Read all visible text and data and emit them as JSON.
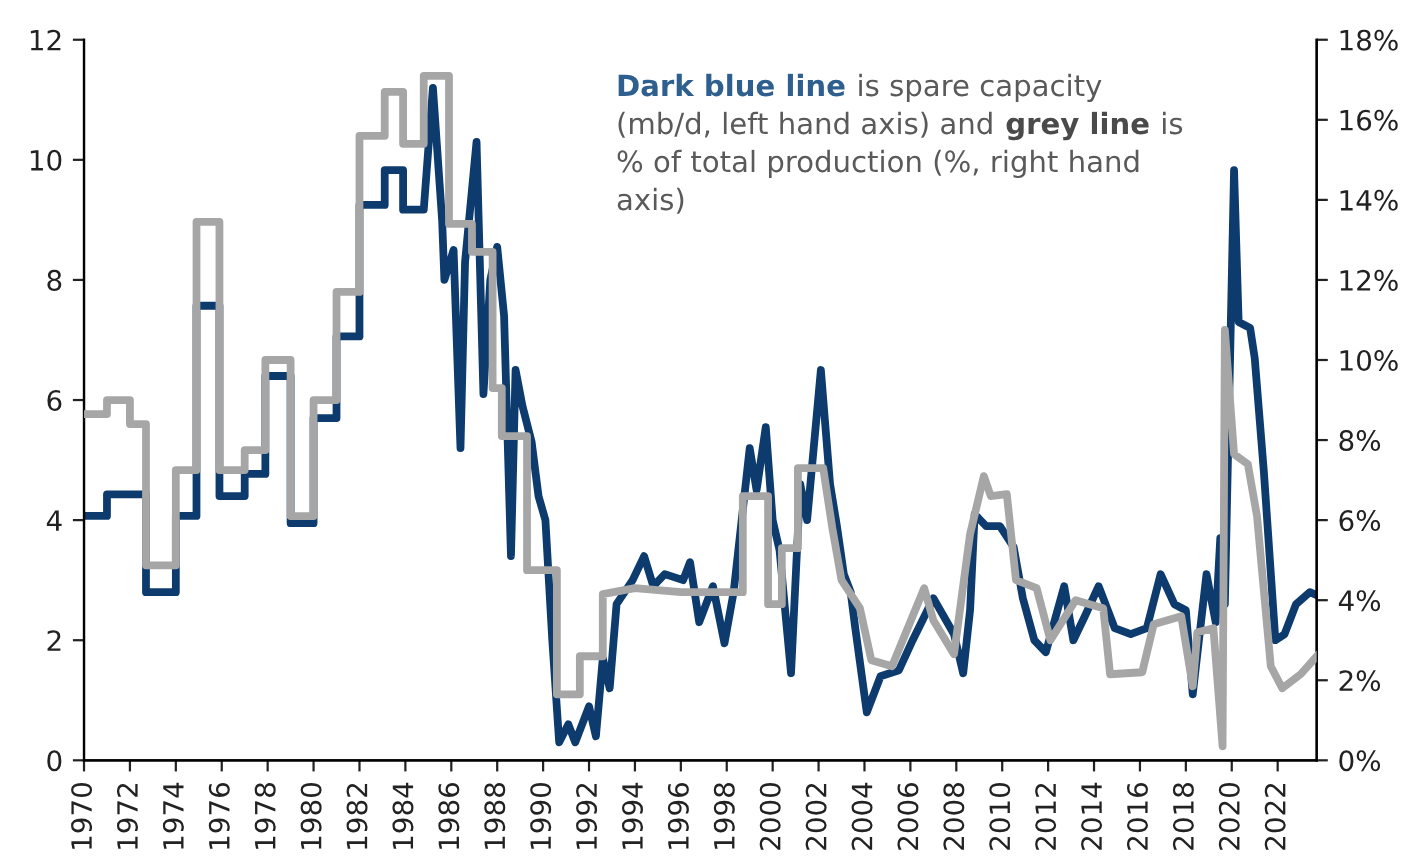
{
  "chart_data": {
    "type": "line",
    "xlim": [
      1970,
      2023.7
    ],
    "xticks": [
      1970,
      1972,
      1974,
      1976,
      1978,
      1980,
      1982,
      1984,
      1986,
      1988,
      1990,
      1992,
      1994,
      1996,
      1998,
      2000,
      2002,
      2004,
      2006,
      2008,
      2010,
      2012,
      2014,
      2016,
      2018,
      2020,
      2022
    ],
    "ylim": [
      0,
      12
    ],
    "yticks": [
      0,
      2,
      4,
      6,
      8,
      10,
      12
    ],
    "y2lim": [
      0,
      18
    ],
    "y2ticks": [
      {
        "value": 0,
        "label": "0%"
      },
      {
        "value": 2,
        "label": "2%"
      },
      {
        "value": 4,
        "label": "4%"
      },
      {
        "value": 6,
        "label": "6%"
      },
      {
        "value": 8,
        "label": "8%"
      },
      {
        "value": 10,
        "label": "10%"
      },
      {
        "value": 12,
        "label": "12%"
      },
      {
        "value": 14,
        "label": "14%"
      },
      {
        "value": 16,
        "label": "16%"
      },
      {
        "value": 18,
        "label": "18%"
      }
    ],
    "grid": false,
    "line_style": "solid",
    "annotations": [
      "Dark blue line",
      " is spare capacity (mb/d, left hand axis) and ",
      "grey line",
      " is % of total production (%, right hand axis)"
    ],
    "series": [
      {
        "color": "#0d3b6e",
        "axis": "y",
        "x": [
          1970,
          1971,
          1971,
          1972.7,
          1972.7,
          1974,
          1974,
          1974.9,
          1974.9,
          1975.9,
          1975.9,
          1977,
          1977,
          1977.9,
          1977.9,
          1979,
          1979,
          1980,
          1980,
          1981,
          1981,
          1982,
          1982,
          1983.1,
          1983.1,
          1983.9,
          1983.9,
          1984.8,
          1985.2,
          1985.6,
          1985.7,
          1986.1,
          1986.4,
          1986.6,
          1987.1,
          1987.4,
          1987.7,
          1988.0,
          1988.3,
          1988.6,
          1988.8,
          1989.1,
          1989.5,
          1989.8,
          1990.1,
          1990.4,
          1990.7,
          1991.1,
          1991.4,
          1992.0,
          1992.3,
          1992.6,
          1992.9,
          1993.2,
          1993.9,
          1994.4,
          1994.8,
          1995.3,
          1996.1,
          1996.4,
          1996.8,
          1997.4,
          1997.9,
          1998.3,
          1999.0,
          1999.3,
          1999.7,
          2000.0,
          2000.3,
          2000.8,
          2001.2,
          2001.5,
          2002.1,
          2002.5,
          2002.8,
          2003.1,
          2003.4,
          2003.6,
          2004.1,
          2004.7,
          2005.5,
          2006.1,
          2007.0,
          2007.9,
          2008.3,
          2008.6,
          2008.8,
          2009.3,
          2009.9,
          2010.5,
          2010.9,
          2011.4,
          2011.9,
          2012.7,
          2013.1,
          2013.6,
          2014.2,
          2014.9,
          2015.6,
          2016.3,
          2016.9,
          2017.5,
          2018.0,
          2018.3,
          2018.9,
          2019.3,
          2019.5,
          2019.7,
          2020.1,
          2020.3,
          2020.8,
          2021.0,
          2021.4,
          2021.9,
          2022.3,
          2022.8,
          2023.4,
          2023.7
        ],
        "values": [
          4.07,
          4.07,
          4.43,
          4.43,
          2.8,
          2.8,
          4.07,
          4.07,
          7.57,
          7.57,
          4.4,
          4.4,
          4.77,
          4.77,
          6.4,
          6.4,
          3.95,
          3.95,
          5.7,
          5.7,
          7.06,
          7.06,
          9.25,
          9.25,
          9.83,
          9.83,
          9.17,
          9.17,
          11.2,
          9.0,
          8.0,
          8.5,
          5.2,
          8.3,
          10.3,
          6.1,
          8.0,
          8.55,
          7.4,
          3.4,
          6.5,
          5.9,
          5.3,
          4.4,
          4.0,
          2.0,
          0.3,
          0.6,
          0.3,
          0.9,
          0.4,
          1.7,
          1.2,
          2.6,
          3.0,
          3.4,
          2.9,
          3.1,
          3.0,
          3.3,
          2.3,
          2.9,
          1.95,
          2.8,
          5.2,
          4.5,
          5.55,
          4.0,
          3.5,
          1.45,
          4.6,
          4.0,
          6.5,
          4.6,
          3.9,
          3.1,
          2.8,
          2.2,
          0.8,
          1.4,
          1.5,
          2.0,
          2.7,
          2.1,
          1.45,
          2.5,
          4.1,
          3.9,
          3.9,
          3.55,
          2.7,
          2.0,
          1.8,
          2.9,
          2.0,
          2.4,
          2.9,
          2.2,
          2.1,
          2.2,
          3.1,
          2.6,
          2.5,
          1.1,
          3.1,
          2.3,
          3.7,
          2.6,
          9.83,
          7.3,
          7.2,
          6.7,
          4.8,
          2.0,
          2.1,
          2.6,
          2.8,
          2.75
        ]
      },
      {
        "color": "#a6a6a6",
        "axis": "y2",
        "x": [
          1970,
          1971,
          1971,
          1972,
          1972,
          1972.7,
          1972.7,
          1974,
          1974,
          1974.9,
          1974.9,
          1975.9,
          1975.9,
          1977,
          1977,
          1977.9,
          1977.9,
          1979,
          1979,
          1980,
          1980,
          1981,
          1981,
          1982,
          1982,
          1983.1,
          1983.1,
          1983.9,
          1983.9,
          1984.8,
          1984.8,
          1985.9,
          1985.9,
          1986.9,
          1986.9,
          1987.8,
          1987.8,
          1988.2,
          1988.2,
          1989.3,
          1989.3,
          1990.6,
          1990.6,
          1991.6,
          1991.6,
          1992.6,
          1992.6,
          1994,
          1996,
          1998.7,
          1998.7,
          1999.8,
          1999.8,
          2000.4,
          2000.4,
          2001.1,
          2001.1,
          2002.2,
          2002.6,
          2003.0,
          2003.8,
          2004.3,
          2005.2,
          2006.6,
          2007.0,
          2007.9,
          2008.6,
          2009.2,
          2009.5,
          2010.2,
          2010.6,
          2011.5,
          2012.1,
          2013.2,
          2014.4,
          2014.7,
          2016.1,
          2016.6,
          2017.8,
          2018.3,
          2018.5,
          2019.2,
          2019.6,
          2019.7,
          2020.1,
          2020.7,
          2021.1,
          2021.7,
          2022.2,
          2023.0,
          2023.7
        ],
        "values": [
          8.65,
          8.65,
          9.0,
          9.0,
          8.4,
          8.4,
          4.87,
          4.87,
          7.25,
          7.25,
          13.45,
          13.45,
          7.25,
          7.25,
          7.75,
          7.75,
          10.0,
          10.0,
          6.1,
          6.1,
          9.0,
          9.0,
          11.7,
          11.7,
          15.6,
          15.6,
          16.7,
          16.7,
          15.4,
          15.4,
          17.1,
          17.1,
          13.4,
          13.4,
          12.7,
          12.7,
          9.3,
          9.3,
          8.1,
          8.1,
          4.75,
          4.75,
          1.65,
          1.65,
          2.6,
          2.6,
          4.15,
          4.3,
          4.2,
          4.2,
          6.6,
          6.6,
          3.9,
          3.9,
          5.3,
          5.3,
          7.3,
          7.3,
          5.8,
          4.5,
          3.8,
          2.5,
          2.35,
          4.3,
          3.5,
          2.65,
          5.65,
          7.1,
          6.6,
          6.65,
          4.5,
          4.3,
          3.0,
          4.0,
          3.8,
          2.15,
          2.2,
          3.4,
          3.6,
          1.85,
          3.2,
          3.3,
          0.35,
          10.75,
          7.65,
          7.4,
          6.1,
          2.35,
          1.8,
          2.15,
          2.6
        ]
      }
    ]
  }
}
